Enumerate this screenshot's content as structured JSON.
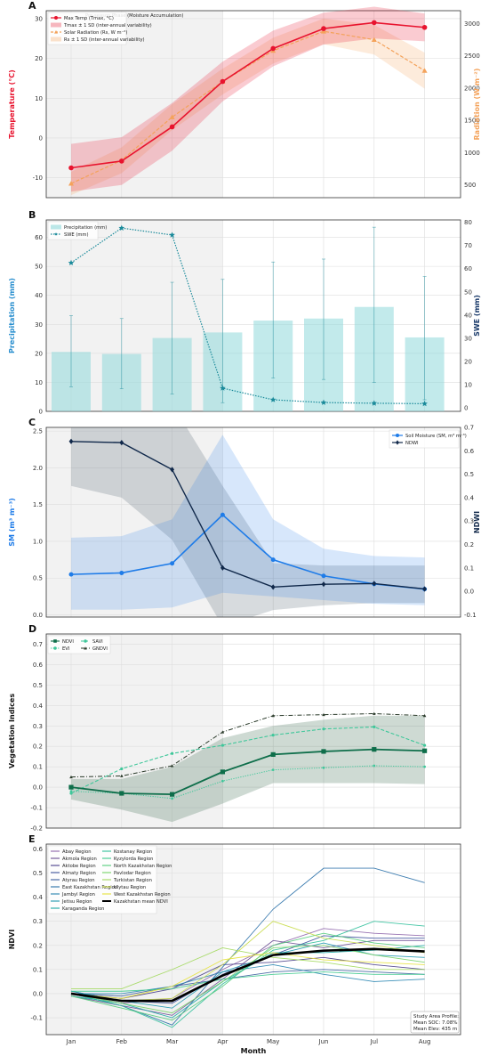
{
  "months": [
    "Jan",
    "Feb",
    "Mar",
    "Apr",
    "May",
    "Jun",
    "Jul",
    "Aug"
  ],
  "xlabel": "Month",
  "shade_label": "Pre-season Phase (Moisture Accumulation)",
  "colors": {
    "temp": "#e8132e",
    "rad": "#f4a25a",
    "precip": "#8fd8db",
    "swe": "#1a8a9a",
    "sm": "#1f7ce8",
    "ndwi": "#10284a",
    "ndvi": "#0e6e4a",
    "evi": "#3fc79a",
    "savi": "#3fc79a",
    "gndvi": "#2a3a2a",
    "mean": "#000000"
  },
  "chart_data": [
    {
      "panel": "A",
      "type": "line",
      "ylabel": "Temperature (°C)",
      "y2label": "Radiation (W m⁻²)",
      "ylim": [
        -15,
        32
      ],
      "yticks": [
        -10,
        0,
        10,
        20,
        30
      ],
      "y2lim": [
        300,
        3200
      ],
      "y2ticks": [
        500,
        1000,
        1500,
        2000,
        2500,
        3000
      ],
      "legend": [
        "Max Temp (Tmax, °C)",
        "Tmax ± 1 SD (inter-annual variability)",
        "Solar Radiation (Rs, W m⁻²)",
        "Rs ± 1 SD (inter-annual variability)"
      ],
      "series": [
        {
          "name": "Max Temp (Tmax, °C)",
          "axis": "left",
          "values": [
            -7.5,
            -5.8,
            2.8,
            14.2,
            22.5,
            27.5,
            29.0,
            27.8
          ],
          "sd": [
            6,
            6,
            6,
            5,
            4.5,
            4,
            4,
            3.5
          ]
        },
        {
          "name": "Solar Radiation (Rs, W m⁻²)",
          "axis": "right",
          "values": [
            520,
            880,
            1550,
            2100,
            2580,
            2880,
            2750,
            2270
          ],
          "sd": [
            180,
            200,
            200,
            200,
            200,
            200,
            230,
            280
          ]
        }
      ]
    },
    {
      "panel": "B",
      "type": "bar",
      "ylabel": "Precipitation (mm)",
      "y2label": "SWE (mm)",
      "ylim": [
        0,
        66
      ],
      "yticks": [
        0,
        10,
        20,
        30,
        40,
        50,
        60
      ],
      "y2lim": [
        -1.5,
        81
      ],
      "y2ticks": [
        0,
        10,
        20,
        30,
        40,
        50,
        60,
        70,
        80
      ],
      "legend": [
        "Precipitation (mm)",
        "SWE (mm)"
      ],
      "series": [
        {
          "name": "Precipitation (mm)",
          "axis": "left",
          "values": [
            20.5,
            19.8,
            25.3,
            27.2,
            31.3,
            32.0,
            36.0,
            25.5
          ],
          "err_low": [
            8.5,
            7.8,
            6.0,
            3.0,
            11.5,
            11.0,
            10.0,
            4.0
          ],
          "err_high": [
            33.0,
            32.0,
            44.5,
            45.5,
            51.5,
            52.5,
            63.5,
            46.5
          ]
        },
        {
          "name": "SWE (mm)",
          "axis": "right",
          "values": [
            62.5,
            77.5,
            74.5,
            8.5,
            3.5,
            2.3,
            2.0,
            1.8
          ]
        }
      ]
    },
    {
      "panel": "C",
      "type": "line",
      "ylabel": "SM (m³ m⁻³)",
      "y2label": "NDWI",
      "ylim": [
        -0.03,
        2.55
      ],
      "yticks": [
        0.0,
        0.5,
        1.0,
        1.5,
        2.0,
        2.5
      ],
      "y2lim": [
        -0.11,
        0.7
      ],
      "y2ticks": [
        -0.1,
        0.0,
        0.1,
        0.2,
        0.3,
        0.4,
        0.5,
        0.6,
        0.7
      ],
      "legend": [
        "Soil Moisture (SM, m³ m⁻³)",
        "NDWI"
      ],
      "series": [
        {
          "name": "Soil Moisture (SM, m³ m⁻³)",
          "axis": "left",
          "values": [
            0.55,
            0.57,
            0.7,
            1.36,
            0.75,
            0.53,
            0.42,
            0.35
          ],
          "low": [
            0.07,
            0.07,
            0.1,
            0.3,
            0.25,
            0.2,
            0.15,
            0.13
          ],
          "high": [
            1.05,
            1.07,
            1.3,
            2.45,
            1.3,
            0.9,
            0.8,
            0.78
          ]
        },
        {
          "name": "NDWI",
          "axis": "right",
          "values": [
            0.64,
            0.635,
            0.52,
            0.1,
            0.018,
            0.03,
            0.033,
            0.01
          ],
          "low": [
            0.45,
            0.4,
            0.22,
            -0.15,
            -0.08,
            -0.06,
            -0.05,
            -0.05
          ],
          "high": [
            0.8,
            0.8,
            0.8,
            0.45,
            0.12,
            0.11,
            0.11,
            0.11
          ]
        }
      ]
    },
    {
      "panel": "D",
      "type": "line",
      "ylabel": "Vegetation Indices",
      "ylim": [
        -0.2,
        0.75
      ],
      "yticks": [
        -0.2,
        -0.1,
        0.0,
        0.1,
        0.2,
        0.3,
        0.4,
        0.5,
        0.6,
        0.7
      ],
      "legend": [
        "NDVI",
        "EVI",
        "SAVI",
        "GNDVI"
      ],
      "series": [
        {
          "name": "NDVI",
          "values": [
            0.0,
            -0.03,
            -0.035,
            0.075,
            0.16,
            0.175,
            0.185,
            0.178
          ],
          "low": [
            -0.06,
            -0.11,
            -0.17,
            -0.08,
            0.02,
            0.02,
            0.02,
            0.015
          ],
          "high": [
            0.04,
            0.04,
            0.1,
            0.24,
            0.3,
            0.33,
            0.35,
            0.35
          ]
        },
        {
          "name": "EVI",
          "values": [
            -0.02,
            -0.03,
            -0.055,
            0.03,
            0.085,
            0.095,
            0.105,
            0.1
          ]
        },
        {
          "name": "SAVI",
          "values": [
            -0.03,
            0.09,
            0.165,
            0.205,
            0.255,
            0.285,
            0.295,
            0.205
          ]
        },
        {
          "name": "GNDVI",
          "values": [
            0.05,
            0.055,
            0.105,
            0.27,
            0.35,
            0.355,
            0.36,
            0.35
          ]
        }
      ]
    },
    {
      "panel": "E",
      "type": "line",
      "ylabel": "NDVI",
      "ylim": [
        -0.17,
        0.62
      ],
      "yticks": [
        -0.1,
        0.0,
        0.1,
        0.2,
        0.3,
        0.4,
        0.5,
        0.6
      ],
      "annotation": [
        "Study Area Profile:",
        "Mean SOC: 7.08%",
        "Mean Elev: 435 m"
      ],
      "series": [
        {
          "name": "Abay Region",
          "color": "#8d64aa",
          "values": [
            0.0,
            -0.04,
            -0.02,
            0.1,
            0.2,
            0.27,
            0.25,
            0.24
          ]
        },
        {
          "name": "Akmola Region",
          "color": "#6a4c93",
          "values": [
            -0.01,
            -0.05,
            -0.09,
            0.06,
            0.22,
            0.19,
            0.22,
            0.22
          ]
        },
        {
          "name": "Aktobe Region",
          "color": "#4a3f8a",
          "values": [
            0.0,
            -0.02,
            0.02,
            0.12,
            0.13,
            0.15,
            0.12,
            0.1
          ]
        },
        {
          "name": "Almaty Region",
          "color": "#3b4f9a",
          "values": [
            0.01,
            -0.03,
            -0.04,
            0.08,
            0.16,
            0.24,
            0.23,
            0.23
          ]
        },
        {
          "name": "Atyrau Region",
          "color": "#3a5d9c",
          "values": [
            0.0,
            -0.01,
            0.03,
            0.06,
            0.09,
            0.1,
            0.09,
            0.08
          ]
        },
        {
          "name": "East Kazakhstan Region",
          "color": "#2a70a8",
          "values": [
            0.0,
            -0.05,
            -0.13,
            0.11,
            0.35,
            0.52,
            0.52,
            0.46
          ]
        },
        {
          "name": "Jambyl Region",
          "color": "#2784b0",
          "values": [
            0.0,
            0.0,
            0.03,
            0.09,
            0.12,
            0.08,
            0.05,
            0.06
          ]
        },
        {
          "name": "Jetisu Region",
          "color": "#1f97b0",
          "values": [
            0.01,
            -0.03,
            -0.06,
            0.09,
            0.16,
            0.21,
            0.16,
            0.15
          ]
        },
        {
          "name": "Karaganda Region",
          "color": "#1ca8a5",
          "values": [
            -0.01,
            -0.04,
            -0.1,
            0.05,
            0.17,
            0.17,
            0.18,
            0.2
          ]
        },
        {
          "name": "Kostanay Region",
          "color": "#2fbf9a",
          "values": [
            0.0,
            -0.05,
            -0.14,
            0.04,
            0.18,
            0.22,
            0.3,
            0.28
          ]
        },
        {
          "name": "Kyzylorda Region",
          "color": "#3bc98c",
          "values": [
            0.01,
            0.01,
            0.02,
            0.06,
            0.08,
            0.09,
            0.08,
            0.08
          ]
        },
        {
          "name": "North Kazakhstan Region",
          "color": "#52cc7a",
          "values": [
            -0.01,
            -0.06,
            -0.11,
            0.03,
            0.2,
            0.25,
            0.21,
            0.19
          ]
        },
        {
          "name": "Pavlodar Region",
          "color": "#76d267",
          "values": [
            0.0,
            -0.04,
            -0.08,
            0.05,
            0.19,
            0.2,
            0.16,
            0.13
          ]
        },
        {
          "name": "Turkistan Region",
          "color": "#a0d85a",
          "values": [
            0.02,
            0.02,
            0.1,
            0.19,
            0.15,
            0.13,
            0.1,
            0.1
          ]
        },
        {
          "name": "Ulytau Region",
          "color": "#c8dc4a",
          "values": [
            0.0,
            -0.03,
            -0.02,
            0.12,
            0.3,
            0.23,
            0.2,
            0.17
          ]
        },
        {
          "name": "West Kazakhstan Region",
          "color": "#e6e23a",
          "values": [
            0.0,
            -0.02,
            0.03,
            0.14,
            0.17,
            0.14,
            0.13,
            0.12
          ]
        },
        {
          "name": "Kazakhstan mean NDVI",
          "color": "#000000",
          "mean": true,
          "values": [
            0.0,
            -0.03,
            -0.03,
            0.075,
            0.16,
            0.178,
            0.185,
            0.175
          ]
        }
      ]
    }
  ]
}
